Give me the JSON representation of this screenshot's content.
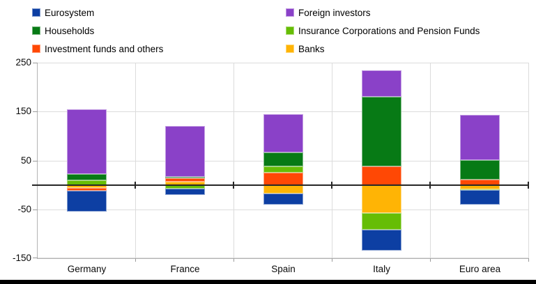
{
  "legend": {
    "position": "top-two-columns",
    "items": [
      {
        "label": "Eurosystem",
        "color": "#0d3fa3"
      },
      {
        "label": "Foreign investors",
        "color": "#8a41c8"
      },
      {
        "label": "Households",
        "color": "#077a15"
      },
      {
        "label": "Insurance Corporations and Pension Funds",
        "color": "#66bd05"
      },
      {
        "label": "Investment funds and others",
        "color": "#ff4805"
      },
      {
        "label": "Banks",
        "color": "#ffb405"
      }
    ]
  },
  "chart_data": {
    "type": "bar",
    "stacked": true,
    "title": "",
    "xlabel": "",
    "ylabel": "",
    "categories": [
      "Germany",
      "France",
      "Spain",
      "Italy",
      "Euro area"
    ],
    "series": [
      {
        "name": "Banks",
        "color": "#ffb405",
        "values": [
          -6,
          7,
          -17,
          -57,
          -9
        ]
      },
      {
        "name": "Investment funds and others",
        "color": "#ff4805",
        "values": [
          -6,
          6,
          25,
          38,
          11
        ]
      },
      {
        "name": "Insurance Corporations and Pension Funds",
        "color": "#66bd05",
        "values": [
          10,
          -8,
          13,
          -35,
          -2
        ]
      },
      {
        "name": "Households",
        "color": "#077a15",
        "values": [
          12,
          3,
          28,
          142,
          40
        ]
      },
      {
        "name": "Foreign investors",
        "color": "#8a41c8",
        "values": [
          133,
          104,
          79,
          55,
          92
        ]
      },
      {
        "name": "Eurosystem",
        "color": "#0d3fa3",
        "values": [
          -42,
          -13,
          -23,
          -43,
          -29
        ]
      }
    ],
    "ylim": [
      -150,
      250
    ],
    "yticks": [
      250,
      150,
      50,
      -50,
      -150
    ],
    "grid": true,
    "zero_line": true
  },
  "colors": {
    "gridline": "#dcdcdc",
    "axis": "#b3b3b3",
    "zero_line": "#262626",
    "text": "#0a0a0a",
    "bottom_bar": "#000000"
  }
}
